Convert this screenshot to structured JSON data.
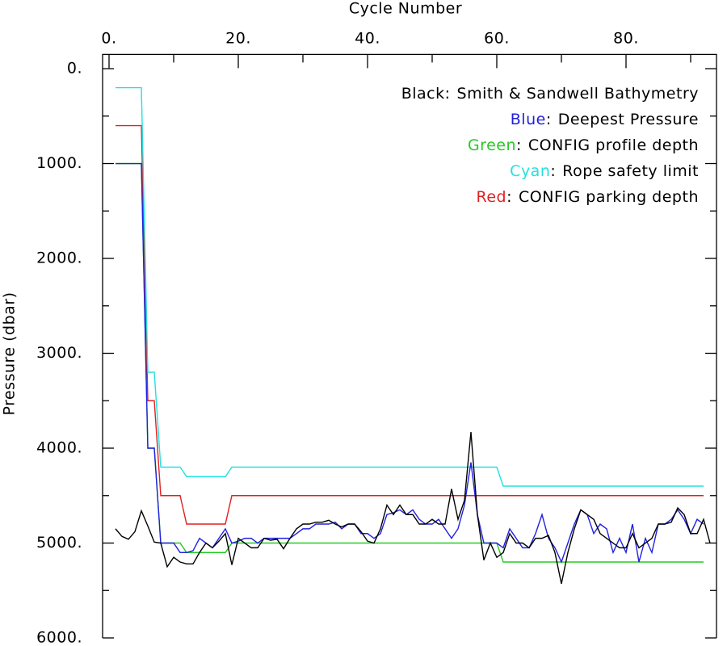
{
  "chart_data": {
    "type": "line",
    "x_axis_label": "Cycle Number",
    "y_axis_label": "Pressure (dbar)",
    "x": [
      1,
      2,
      3,
      4,
      5,
      6,
      7,
      8,
      9,
      10,
      11,
      12,
      13,
      14,
      15,
      16,
      17,
      18,
      19,
      20,
      21,
      22,
      23,
      24,
      25,
      26,
      27,
      28,
      29,
      30,
      31,
      32,
      33,
      34,
      35,
      36,
      37,
      38,
      39,
      40,
      41,
      42,
      43,
      44,
      45,
      46,
      47,
      48,
      49,
      50,
      51,
      52,
      53,
      54,
      55,
      56,
      57,
      58,
      59,
      60,
      61,
      62,
      63,
      64,
      65,
      66,
      67,
      68,
      69,
      70,
      71,
      72,
      73,
      74,
      75,
      76,
      77,
      78,
      79,
      80,
      81,
      82,
      83,
      84,
      85,
      86,
      87,
      88,
      89,
      90,
      91,
      92,
      93
    ],
    "xlim": [
      -1,
      94
    ],
    "xticks": [
      {
        "value": 0,
        "label": "0."
      },
      {
        "value": 20,
        "label": "20."
      },
      {
        "value": 40,
        "label": "40."
      },
      {
        "value": 60,
        "label": "60."
      },
      {
        "value": 80,
        "label": "80."
      }
    ],
    "x_minor_ticks": [
      10,
      30,
      50,
      70,
      90
    ],
    "ylim": [
      -150,
      6000
    ],
    "y_inverted": true,
    "yticks": [
      {
        "value": 0,
        "label": "0."
      },
      {
        "value": 1000,
        "label": "1000."
      },
      {
        "value": 2000,
        "label": "2000."
      },
      {
        "value": 3000,
        "label": "3000."
      },
      {
        "value": 4000,
        "label": "4000."
      },
      {
        "value": 5000,
        "label": "5000."
      },
      {
        "value": 6000,
        "label": "6000."
      }
    ],
    "y_minor_ticks": [
      500,
      1500,
      2500,
      3500,
      4500,
      5500
    ],
    "legend_separator": ":",
    "series": [
      {
        "key": "Black",
        "name": "Smith & Sandwell Bathymetry",
        "color": "#000000",
        "values": [
          4850,
          4930,
          4960,
          4880,
          4660,
          4820,
          4990,
          5000,
          5250,
          5150,
          5200,
          5220,
          5220,
          5100,
          5000,
          5050,
          4980,
          4900,
          5230,
          4950,
          5000,
          5050,
          5050,
          4950,
          4970,
          4960,
          5060,
          4950,
          4850,
          4800,
          4800,
          4780,
          4780,
          4760,
          4800,
          4830,
          4800,
          4800,
          4880,
          4980,
          5000,
          4850,
          4600,
          4700,
          4600,
          4700,
          4700,
          4800,
          4800,
          4750,
          4800,
          4800,
          4430,
          4750,
          4550,
          3830,
          4700,
          5180,
          5000,
          5150,
          5100,
          4900,
          5000,
          5000,
          5050,
          4950,
          4950,
          4920,
          5100,
          5430,
          5100,
          4850,
          4650,
          4700,
          4750,
          4900,
          4950,
          5000,
          5050,
          5050,
          4900,
          5050,
          5000,
          4950,
          4800,
          4800,
          4780,
          4630,
          4700,
          4900,
          4900,
          4750,
          5000
        ]
      },
      {
        "key": "Blue",
        "name": "Deepest Pressure",
        "color": "#2020e0",
        "values": [
          1000,
          1000,
          1000,
          1000,
          1000,
          4000,
          4000,
          5000,
          5000,
          5000,
          5100,
          5100,
          5080,
          4950,
          5000,
          5050,
          4950,
          4850,
          5000,
          4980,
          4950,
          4950,
          5000,
          4950,
          4950,
          4950,
          4950,
          4950,
          4900,
          4850,
          4850,
          4800,
          4800,
          4800,
          4780,
          4850,
          4800,
          4800,
          4900,
          4900,
          4950,
          4900,
          4700,
          4680,
          4650,
          4700,
          4650,
          4750,
          4800,
          4800,
          4750,
          4850,
          4950,
          4850,
          4600,
          4150,
          4700,
          5000,
          5000,
          5000,
          5050,
          4850,
          4950,
          5050,
          5050,
          4900,
          4700,
          4950,
          5050,
          5200,
          5000,
          4800,
          4650,
          4700,
          4900,
          4800,
          4850,
          5100,
          4950,
          5100,
          4800,
          5200,
          4950,
          5100,
          4800,
          4800,
          4750,
          4650,
          4750,
          4900,
          4750,
          4800,
          null
        ]
      },
      {
        "key": "Green",
        "name": "CONFIG profile depth",
        "color": "#22cc22",
        "values": [
          1000,
          1000,
          1000,
          1000,
          1000,
          4000,
          4000,
          5000,
          5000,
          5000,
          5000,
          5100,
          5100,
          5100,
          5100,
          5100,
          5100,
          5100,
          5000,
          5000,
          5000,
          5000,
          5000,
          5000,
          5000,
          5000,
          5000,
          5000,
          5000,
          5000,
          5000,
          5000,
          5000,
          5000,
          5000,
          5000,
          5000,
          5000,
          5000,
          5000,
          5000,
          5000,
          5000,
          5000,
          5000,
          5000,
          5000,
          5000,
          5000,
          5000,
          5000,
          5000,
          5000,
          5000,
          5000,
          5000,
          5000,
          5000,
          5000,
          5000,
          5200,
          5200,
          5200,
          5200,
          5200,
          5200,
          5200,
          5200,
          5200,
          5200,
          5200,
          5200,
          5200,
          5200,
          5200,
          5200,
          5200,
          5200,
          5200,
          5200,
          5200,
          5200,
          5200,
          5200,
          5200,
          5200,
          5200,
          5200,
          5200,
          5200,
          5200,
          5200,
          null
        ]
      },
      {
        "key": "Cyan",
        "name": "Rope safety limit",
        "color": "#22e0e0",
        "values": [
          200,
          200,
          200,
          200,
          200,
          3200,
          3200,
          4200,
          4200,
          4200,
          4200,
          4300,
          4300,
          4300,
          4300,
          4300,
          4300,
          4300,
          4200,
          4200,
          4200,
          4200,
          4200,
          4200,
          4200,
          4200,
          4200,
          4200,
          4200,
          4200,
          4200,
          4200,
          4200,
          4200,
          4200,
          4200,
          4200,
          4200,
          4200,
          4200,
          4200,
          4200,
          4200,
          4200,
          4200,
          4200,
          4200,
          4200,
          4200,
          4200,
          4200,
          4200,
          4200,
          4200,
          4200,
          4200,
          4200,
          4200,
          4200,
          4200,
          4400,
          4400,
          4400,
          4400,
          4400,
          4400,
          4400,
          4400,
          4400,
          4400,
          4400,
          4400,
          4400,
          4400,
          4400,
          4400,
          4400,
          4400,
          4400,
          4400,
          4400,
          4400,
          4400,
          4400,
          4400,
          4400,
          4400,
          4400,
          4400,
          4400,
          4400,
          4400,
          null
        ]
      },
      {
        "key": "Red",
        "name": "CONFIG parking depth",
        "color": "#e02020",
        "values": [
          600,
          600,
          600,
          600,
          600,
          3500,
          3500,
          4500,
          4500,
          4500,
          4500,
          4800,
          4800,
          4800,
          4800,
          4800,
          4800,
          4800,
          4500,
          4500,
          4500,
          4500,
          4500,
          4500,
          4500,
          4500,
          4500,
          4500,
          4500,
          4500,
          4500,
          4500,
          4500,
          4500,
          4500,
          4500,
          4500,
          4500,
          4500,
          4500,
          4500,
          4500,
          4500,
          4500,
          4500,
          4500,
          4500,
          4500,
          4500,
          4500,
          4500,
          4500,
          4500,
          4500,
          4500,
          4500,
          4500,
          4500,
          4500,
          4500,
          4500,
          4500,
          4500,
          4500,
          4500,
          4500,
          4500,
          4500,
          4500,
          4500,
          4500,
          4500,
          4500,
          4500,
          4500,
          4500,
          4500,
          4500,
          4500,
          4500,
          4500,
          4500,
          4500,
          4500,
          4500,
          4500,
          4500,
          4500,
          4500,
          4500,
          4500,
          4500,
          null
        ]
      }
    ]
  }
}
